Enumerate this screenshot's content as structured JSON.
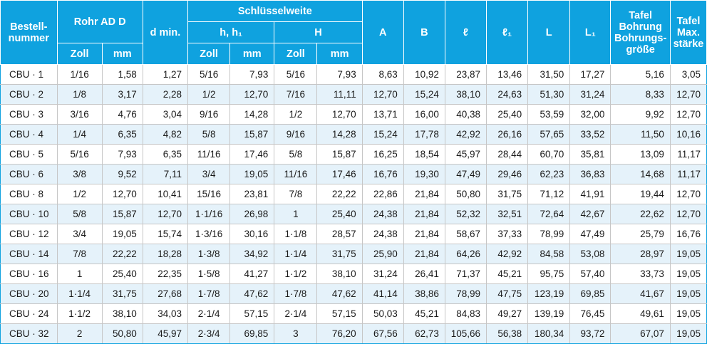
{
  "header": {
    "bestellnummer": "Bestell-nummer",
    "rohr_ad": "Rohr AD D",
    "d_min": "d min.",
    "schluesselweite": "Schlüsselweite",
    "h_h1": "h, h₁",
    "H": "H",
    "A": "A",
    "B": "B",
    "l": "ℓ",
    "l1": "ℓ₁",
    "L": "L",
    "L1": "L₁",
    "tafel_bohrung": "Tafel Bohrung Bohrungs-größe",
    "tafel_max": "Tafel Max. stärke",
    "zoll": "Zoll",
    "mm": "mm"
  },
  "rows": [
    [
      "CBU · 1",
      "1/16",
      "1,58",
      "1,27",
      "5/16",
      "7,93",
      "5/16",
      "7,93",
      "8,63",
      "10,92",
      "23,87",
      "13,46",
      "31,50",
      "17,27",
      "5,16",
      "3,05"
    ],
    [
      "CBU · 2",
      "1/8",
      "3,17",
      "2,28",
      "1/2",
      "12,70",
      "7/16",
      "11,11",
      "12,70",
      "15,24",
      "38,10",
      "24,63",
      "51,30",
      "31,24",
      "8,33",
      "12,70"
    ],
    [
      "CBU · 3",
      "3/16",
      "4,76",
      "3,04",
      "9/16",
      "14,28",
      "1/2",
      "12,70",
      "13,71",
      "16,00",
      "40,38",
      "25,40",
      "53,59",
      "32,00",
      "9,92",
      "12,70"
    ],
    [
      "CBU · 4",
      "1/4",
      "6,35",
      "4,82",
      "5/8",
      "15,87",
      "9/16",
      "14,28",
      "15,24",
      "17,78",
      "42,92",
      "26,16",
      "57,65",
      "33,52",
      "11,50",
      "10,16"
    ],
    [
      "CBU · 5",
      "5/16",
      "7,93",
      "6,35",
      "11/16",
      "17,46",
      "5/8",
      "15,87",
      "16,25",
      "18,54",
      "45,97",
      "28,44",
      "60,70",
      "35,81",
      "13,09",
      "11,17"
    ],
    [
      "CBU · 6",
      "3/8",
      "9,52",
      "7,11",
      "3/4",
      "19,05",
      "11/16",
      "17,46",
      "16,76",
      "19,30",
      "47,49",
      "29,46",
      "62,23",
      "36,83",
      "14,68",
      "11,17"
    ],
    [
      "CBU · 8",
      "1/2",
      "12,70",
      "10,41",
      "15/16",
      "23,81",
      "7/8",
      "22,22",
      "22,86",
      "21,84",
      "50,80",
      "31,75",
      "71,12",
      "41,91",
      "19,44",
      "12,70"
    ],
    [
      "CBU · 10",
      "5/8",
      "15,87",
      "12,70",
      "1·1/16",
      "26,98",
      "1",
      "25,40",
      "24,38",
      "21,84",
      "52,32",
      "32,51",
      "72,64",
      "42,67",
      "22,62",
      "12,70"
    ],
    [
      "CBU · 12",
      "3/4",
      "19,05",
      "15,74",
      "1·3/16",
      "30,16",
      "1·1/8",
      "28,57",
      "24,38",
      "21,84",
      "58,67",
      "37,33",
      "78,99",
      "47,49",
      "25,79",
      "16,76"
    ],
    [
      "CBU · 14",
      "7/8",
      "22,22",
      "18,28",
      "1·3/8",
      "34,92",
      "1·1/4",
      "31,75",
      "25,90",
      "21,84",
      "64,26",
      "42,92",
      "84,58",
      "53,08",
      "28,97",
      "19,05"
    ],
    [
      "CBU · 16",
      "1",
      "25,40",
      "22,35",
      "1·5/8",
      "41,27",
      "1·1/2",
      "38,10",
      "31,24",
      "26,41",
      "71,37",
      "45,21",
      "95,75",
      "57,40",
      "33,73",
      "19,05"
    ],
    [
      "CBU · 20",
      "1·1/4",
      "31,75",
      "27,68",
      "1·7/8",
      "47,62",
      "1·7/8",
      "47,62",
      "41,14",
      "38,86",
      "78,99",
      "47,75",
      "123,19",
      "69,85",
      "41,67",
      "19,05"
    ],
    [
      "CBU · 24",
      "1·1/2",
      "38,10",
      "34,03",
      "2·1/4",
      "57,15",
      "2·1/4",
      "57,15",
      "50,03",
      "45,21",
      "84,83",
      "49,27",
      "139,19",
      "76,45",
      "49,61",
      "19,05"
    ],
    [
      "CBU · 32",
      "2",
      "50,80",
      "45,97",
      "2·3/4",
      "69,85",
      "3",
      "76,20",
      "67,56",
      "62,73",
      "105,66",
      "56,38",
      "180,34",
      "93,72",
      "67,07",
      "19,05"
    ]
  ]
}
